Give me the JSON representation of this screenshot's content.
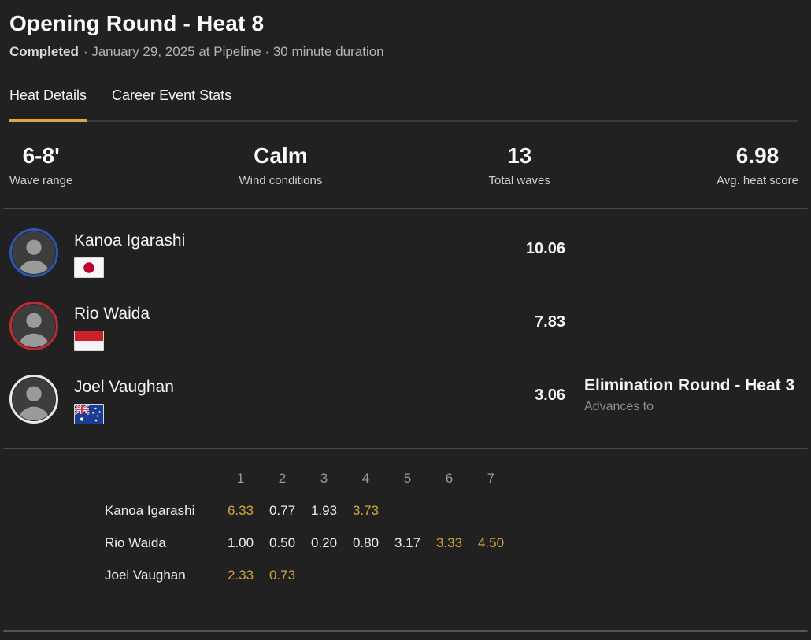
{
  "header": {
    "title": "Opening Round - Heat 8",
    "status": "Completed",
    "meta": "· January 29, 2025 at Pipeline · 30 minute duration"
  },
  "tabs": [
    {
      "label": "Heat Details",
      "active": true
    },
    {
      "label": "Career Event Stats",
      "active": false
    }
  ],
  "stats": [
    {
      "value": "6-8'",
      "label": "Wave range"
    },
    {
      "value": "Calm",
      "label": "Wind conditions"
    },
    {
      "value": "13",
      "label": "Total waves"
    },
    {
      "value": "6.98",
      "label": "Avg. heat score"
    }
  ],
  "surfers": [
    {
      "name": "Kanoa Igarashi",
      "country": "Japan",
      "flag": "jp",
      "ring_color": "#2d55b0",
      "total_score": "10.06",
      "advance_round": "",
      "advance_label": ""
    },
    {
      "name": "Rio Waida",
      "country": "Indonesia",
      "flag": "id",
      "ring_color": "#bf2b35",
      "total_score": "7.83",
      "advance_round": "",
      "advance_label": ""
    },
    {
      "name": "Joel Vaughan",
      "country": "Australia",
      "flag": "au",
      "ring_color": "#e8e8e8",
      "total_score": "3.06",
      "advance_round": "Elimination Round - Heat 3",
      "advance_label": "Advances to"
    }
  ],
  "wave_table": {
    "columns": [
      "1",
      "2",
      "3",
      "4",
      "5",
      "6",
      "7"
    ],
    "rows": [
      {
        "name": "Kanoa Igarashi",
        "waves": [
          {
            "value": "6.33",
            "highlight": true
          },
          {
            "value": "0.77",
            "highlight": false
          },
          {
            "value": "1.93",
            "highlight": false
          },
          {
            "value": "3.73",
            "highlight": true
          }
        ]
      },
      {
        "name": "Rio Waida",
        "waves": [
          {
            "value": "1.00",
            "highlight": false
          },
          {
            "value": "0.50",
            "highlight": false
          },
          {
            "value": "0.20",
            "highlight": false
          },
          {
            "value": "0.80",
            "highlight": false
          },
          {
            "value": "3.17",
            "highlight": false
          },
          {
            "value": "3.33",
            "highlight": true
          },
          {
            "value": "4.50",
            "highlight": true
          }
        ]
      },
      {
        "name": "Joel Vaughan",
        "waves": [
          {
            "value": "2.33",
            "highlight": true
          },
          {
            "value": "0.73",
            "highlight": true
          }
        ]
      }
    ]
  },
  "colors": {
    "background": "#212121",
    "accent": "#E0A73C",
    "highlight_score": "#D4A43C",
    "divider": "#4a4a4a"
  }
}
